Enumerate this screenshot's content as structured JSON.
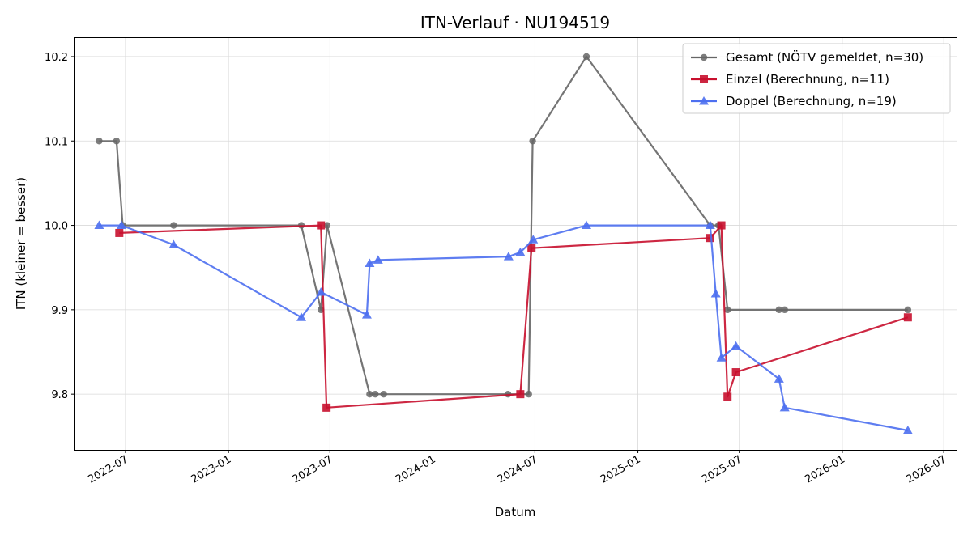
{
  "chart_data": {
    "type": "line",
    "title": "ITN-Verlauf · NU194519",
    "xlabel": "Datum",
    "ylabel": "ITN  (kleiner = besser)",
    "x_axis": "date",
    "xlim": [
      "2022-04-01",
      "2026-07-24"
    ],
    "ylim": [
      9.734,
      10.222
    ],
    "x_ticks": [
      "2022-07",
      "2023-01",
      "2023-07",
      "2024-01",
      "2024-07",
      "2025-01",
      "2025-07",
      "2026-01",
      "2026-07"
    ],
    "y_ticks": [
      "9.8",
      "9.9",
      "10.0",
      "10.1",
      "10.2"
    ],
    "grid": true,
    "legend_position": "top-right",
    "series": [
      {
        "name": "Gesamt (NÖTV gemeldet, n=30)",
        "color": "#666666",
        "marker": "circle",
        "points": [
          [
            "2022-05-15",
            10.1
          ],
          [
            "2022-06-15",
            10.1
          ],
          [
            "2022-06-26",
            10.0
          ],
          [
            "2022-09-25",
            10.0
          ],
          [
            "2023-05-11",
            10.0
          ],
          [
            "2023-06-15",
            9.9
          ],
          [
            "2023-06-26",
            10.0
          ],
          [
            "2023-09-10",
            9.8
          ],
          [
            "2023-09-20",
            9.8
          ],
          [
            "2023-10-05",
            9.8
          ],
          [
            "2024-05-14",
            9.8
          ],
          [
            "2024-06-20",
            9.8
          ],
          [
            "2024-06-27",
            10.1
          ],
          [
            "2024-10-01",
            10.2
          ],
          [
            "2025-05-10",
            10.0
          ],
          [
            "2025-05-25",
            10.0
          ],
          [
            "2025-06-10",
            9.9
          ],
          [
            "2025-09-10",
            9.9
          ],
          [
            "2025-09-20",
            9.9
          ],
          [
            "2026-04-28",
            9.9
          ]
        ]
      },
      {
        "name": "Einzel (Berechnung, n=11)",
        "color": "#c8102e",
        "marker": "square",
        "points": [
          [
            "2022-06-20",
            9.991
          ],
          [
            "2023-06-15",
            10.0
          ],
          [
            "2023-06-25",
            9.784
          ],
          [
            "2024-06-05",
            9.8
          ],
          [
            "2024-06-25",
            9.973
          ],
          [
            "2025-05-10",
            9.985
          ],
          [
            "2025-05-30",
            10.0
          ],
          [
            "2025-06-10",
            9.797
          ],
          [
            "2025-06-25",
            9.826
          ],
          [
            "2026-04-28",
            9.891
          ]
        ]
      },
      {
        "name": "Doppel (Berechnung, n=19)",
        "color": "#4d6ff0",
        "marker": "triangle",
        "points": [
          [
            "2022-05-15",
            10.0
          ],
          [
            "2022-06-24",
            10.0
          ],
          [
            "2022-09-25",
            9.977
          ],
          [
            "2023-05-11",
            9.891
          ],
          [
            "2023-06-15",
            9.921
          ],
          [
            "2023-09-05",
            9.894
          ],
          [
            "2023-09-10",
            9.955
          ],
          [
            "2023-09-25",
            9.959
          ],
          [
            "2024-05-15",
            9.963
          ],
          [
            "2024-06-05",
            9.968
          ],
          [
            "2024-06-28",
            9.983
          ],
          [
            "2024-10-01",
            10.0
          ],
          [
            "2025-05-10",
            10.0
          ],
          [
            "2025-05-20",
            9.919
          ],
          [
            "2025-05-30",
            9.843
          ],
          [
            "2025-06-25",
            9.857
          ],
          [
            "2025-09-10",
            9.818
          ],
          [
            "2025-09-20",
            9.784
          ],
          [
            "2026-04-28",
            9.757
          ]
        ]
      }
    ]
  }
}
